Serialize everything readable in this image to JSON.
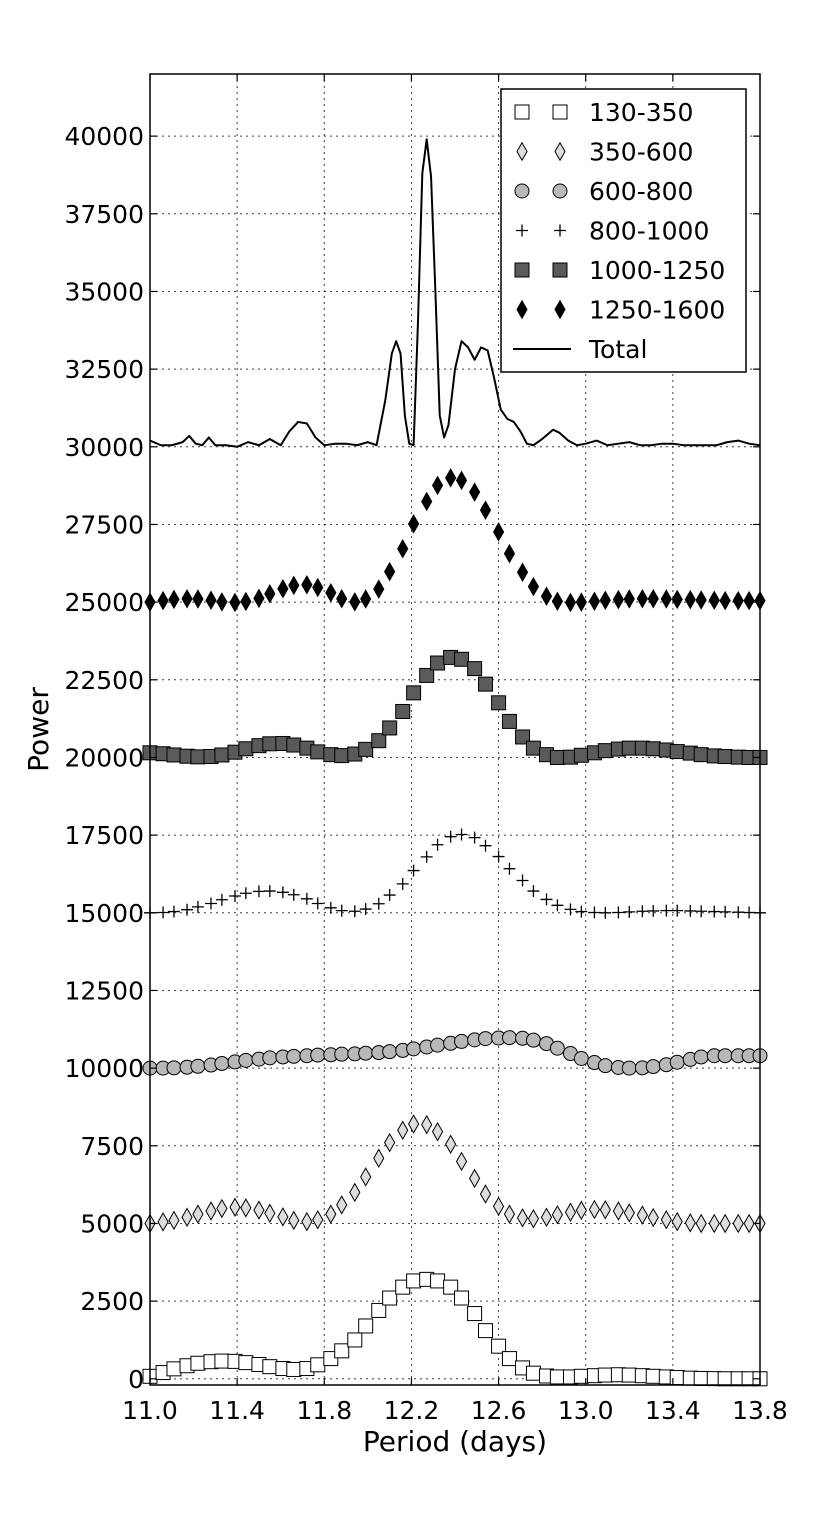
{
  "chart_data": {
    "type": "scatter",
    "title": "",
    "xlabel": "Period (days)",
    "ylabel": "Power",
    "xlim": [
      11.0,
      13.8
    ],
    "ylim": [
      -200,
      42000
    ],
    "x_ticks": [
      "11.0",
      "11.4",
      "11.8",
      "12.2",
      "12.6",
      "13.0",
      "13.4",
      "13.8"
    ],
    "y_ticks": [
      "0",
      "2500",
      "5000",
      "7500",
      "10000",
      "12500",
      "15000",
      "17500",
      "20000",
      "22500",
      "25000",
      "27500",
      "30000",
      "32500",
      "35000",
      "37500",
      "40000"
    ],
    "grid": true,
    "legend_position": "top-right",
    "x": [
      11.0,
      11.06,
      11.11,
      11.17,
      11.22,
      11.28,
      11.33,
      11.39,
      11.44,
      11.5,
      11.55,
      11.61,
      11.66,
      11.72,
      11.77,
      11.83,
      11.88,
      11.94,
      11.99,
      12.05,
      12.1,
      12.16,
      12.21,
      12.27,
      12.32,
      12.38,
      12.43,
      12.49,
      12.54,
      12.6,
      12.65,
      12.71,
      12.76,
      12.82,
      12.87,
      12.93,
      12.98,
      13.04,
      13.09,
      13.15,
      13.2,
      13.26,
      13.31,
      13.37,
      13.42,
      13.48,
      13.53,
      13.59,
      13.64,
      13.7,
      13.75,
      13.8
    ],
    "series": [
      {
        "name": "130-350",
        "marker": "open-square",
        "color": "#ffffff",
        "values": [
          80,
          200,
          320,
          420,
          500,
          550,
          570,
          560,
          520,
          460,
          390,
          330,
          300,
          330,
          450,
          650,
          900,
          1250,
          1700,
          2200,
          2600,
          2950,
          3150,
          3200,
          3150,
          2950,
          2600,
          2100,
          1550,
          1050,
          650,
          350,
          180,
          90,
          60,
          60,
          80,
          100,
          120,
          130,
          120,
          100,
          80,
          60,
          40,
          20,
          10,
          5,
          0,
          0,
          0,
          0
        ]
      },
      {
        "name": "350-600",
        "marker": "diamond",
        "color": "#dddddd",
        "values": [
          5000,
          5050,
          5100,
          5200,
          5300,
          5400,
          5480,
          5520,
          5500,
          5430,
          5330,
          5210,
          5100,
          5060,
          5120,
          5300,
          5600,
          6000,
          6500,
          7100,
          7600,
          8000,
          8200,
          8180,
          7950,
          7550,
          7000,
          6450,
          5950,
          5550,
          5300,
          5180,
          5150,
          5200,
          5280,
          5360,
          5420,
          5450,
          5440,
          5400,
          5340,
          5270,
          5190,
          5120,
          5060,
          5020,
          5000,
          5000,
          5000,
          5000,
          5000,
          5000
        ]
      },
      {
        "name": "600-800",
        "marker": "circle",
        "color": "#b8b8b8",
        "values": [
          10000,
          10000,
          10010,
          10030,
          10060,
          10100,
          10150,
          10200,
          10250,
          10290,
          10330,
          10360,
          10380,
          10400,
          10420,
          10430,
          10450,
          10460,
          10480,
          10500,
          10530,
          10570,
          10620,
          10680,
          10740,
          10800,
          10860,
          10910,
          10950,
          10970,
          10980,
          10960,
          10900,
          10790,
          10640,
          10470,
          10310,
          10180,
          10080,
          10020,
          10000,
          10010,
          10050,
          10110,
          10190,
          10280,
          10360,
          10400,
          10400,
          10400,
          10400,
          10400
        ]
      },
      {
        "name": "800-1000",
        "marker": "plus",
        "color": "#000000",
        "values": [
          15000,
          15010,
          15040,
          15100,
          15190,
          15300,
          15420,
          15540,
          15630,
          15690,
          15700,
          15660,
          15580,
          15450,
          15300,
          15160,
          15070,
          15050,
          15120,
          15290,
          15570,
          15930,
          16360,
          16800,
          17190,
          17450,
          17520,
          17420,
          17160,
          16810,
          16420,
          16040,
          15700,
          15430,
          15240,
          15110,
          15040,
          15010,
          15000,
          15010,
          15030,
          15050,
          15060,
          15070,
          15070,
          15060,
          15050,
          15040,
          15030,
          15020,
          15010,
          15000
        ]
      },
      {
        "name": "1000-1250",
        "marker": "filled-square",
        "color": "#5a5a5a",
        "values": [
          20150,
          20120,
          20080,
          20040,
          20020,
          20030,
          20080,
          20170,
          20280,
          20380,
          20440,
          20450,
          20400,
          20300,
          20180,
          20090,
          20060,
          20110,
          20260,
          20540,
          20950,
          21480,
          22080,
          22640,
          23040,
          23220,
          23160,
          22860,
          22360,
          21760,
          21160,
          20660,
          20300,
          20090,
          20000,
          20010,
          20070,
          20150,
          20220,
          20270,
          20300,
          20300,
          20280,
          20240,
          20190,
          20140,
          20090,
          20050,
          20030,
          20010,
          20000,
          20000
        ]
      },
      {
        "name": "1250-1600",
        "marker": "filled-diamond",
        "color": "#000000",
        "values": [
          25000,
          25050,
          25090,
          25110,
          25100,
          25060,
          25010,
          24990,
          25020,
          25120,
          25270,
          25430,
          25540,
          25560,
          25470,
          25300,
          25110,
          25010,
          25100,
          25420,
          25980,
          26720,
          27520,
          28240,
          28760,
          29000,
          28920,
          28540,
          27960,
          27260,
          26560,
          25960,
          25500,
          25190,
          25030,
          24990,
          25000,
          25030,
          25060,
          25080,
          25100,
          25110,
          25110,
          25100,
          25090,
          25080,
          25070,
          25060,
          25050,
          25050,
          25050,
          25050
        ]
      },
      {
        "name": "Total",
        "marker": "line",
        "color": "#000000",
        "points": [
          [
            11.0,
            30200
          ],
          [
            11.05,
            30050
          ],
          [
            11.1,
            30050
          ],
          [
            11.15,
            30150
          ],
          [
            11.18,
            30350
          ],
          [
            11.21,
            30100
          ],
          [
            11.24,
            30050
          ],
          [
            11.27,
            30300
          ],
          [
            11.3,
            30050
          ],
          [
            11.35,
            30050
          ],
          [
            11.4,
            30000
          ],
          [
            11.45,
            30150
          ],
          [
            11.5,
            30050
          ],
          [
            11.55,
            30250
          ],
          [
            11.6,
            30050
          ],
          [
            11.64,
            30500
          ],
          [
            11.68,
            30800
          ],
          [
            11.72,
            30750
          ],
          [
            11.76,
            30300
          ],
          [
            11.8,
            30050
          ],
          [
            11.85,
            30100
          ],
          [
            11.9,
            30100
          ],
          [
            11.95,
            30050
          ],
          [
            12.0,
            30150
          ],
          [
            12.04,
            30050
          ],
          [
            12.08,
            31500
          ],
          [
            12.11,
            33000
          ],
          [
            12.13,
            33400
          ],
          [
            12.15,
            33000
          ],
          [
            12.17,
            31000
          ],
          [
            12.19,
            30100
          ],
          [
            12.21,
            30050
          ],
          [
            12.23,
            34000
          ],
          [
            12.25,
            38800
          ],
          [
            12.27,
            39900
          ],
          [
            12.29,
            38700
          ],
          [
            12.31,
            35000
          ],
          [
            12.33,
            31000
          ],
          [
            12.35,
            30300
          ],
          [
            12.37,
            30700
          ],
          [
            12.4,
            32500
          ],
          [
            12.43,
            33400
          ],
          [
            12.46,
            33200
          ],
          [
            12.49,
            32800
          ],
          [
            12.52,
            33200
          ],
          [
            12.55,
            33100
          ],
          [
            12.58,
            32200
          ],
          [
            12.61,
            31200
          ],
          [
            12.64,
            30900
          ],
          [
            12.67,
            30800
          ],
          [
            12.7,
            30500
          ],
          [
            12.73,
            30100
          ],
          [
            12.76,
            30050
          ],
          [
            12.8,
            30250
          ],
          [
            12.85,
            30550
          ],
          [
            12.88,
            30450
          ],
          [
            12.92,
            30200
          ],
          [
            12.96,
            30050
          ],
          [
            13.0,
            30100
          ],
          [
            13.05,
            30200
          ],
          [
            13.1,
            30050
          ],
          [
            13.15,
            30100
          ],
          [
            13.2,
            30150
          ],
          [
            13.25,
            30050
          ],
          [
            13.3,
            30050
          ],
          [
            13.35,
            30100
          ],
          [
            13.4,
            30100
          ],
          [
            13.45,
            30050
          ],
          [
            13.5,
            30050
          ],
          [
            13.55,
            30050
          ],
          [
            13.6,
            30050
          ],
          [
            13.65,
            30150
          ],
          [
            13.7,
            30200
          ],
          [
            13.75,
            30100
          ],
          [
            13.8,
            30050
          ]
        ]
      }
    ]
  }
}
